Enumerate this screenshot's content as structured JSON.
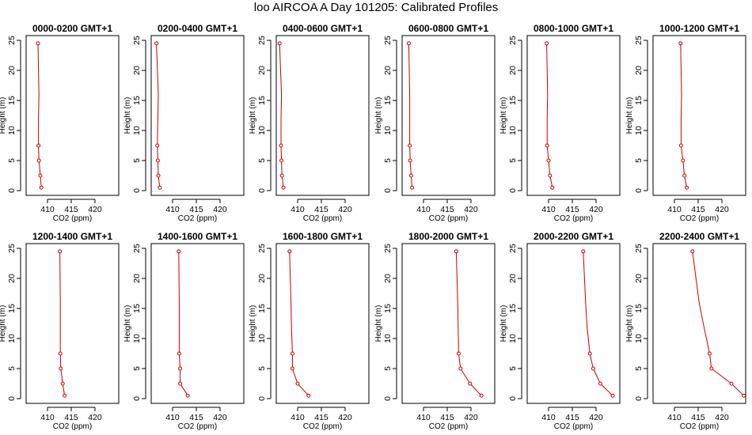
{
  "page_title": "loo AIRCOA A  Day 101205: Calibrated Profiles",
  "colors": {
    "series": "#cc0000",
    "axes": "#000000",
    "background": "#ffffff"
  },
  "chart_data": [
    {
      "type": "line",
      "title": "0000-0200 GMT+1",
      "xlabel": "CO2 (ppm)",
      "ylabel": "Height (m)",
      "xlim": [
        405.5,
        425
      ],
      "ylim": [
        0,
        25
      ],
      "xticks": [
        410,
        415,
        420
      ],
      "yticks": [
        0,
        5,
        10,
        15,
        20,
        25
      ],
      "grid": false,
      "series": [
        {
          "x": [
            408.7,
            408.5,
            408.2,
            408.1,
            408.1,
            408.2,
            408.0
          ],
          "y": [
            0.5,
            2.5,
            5,
            7.5,
            12,
            16,
            24.5
          ]
        }
      ]
    },
    {
      "type": "line",
      "title": "0200-0400 GMT+1",
      "xlabel": "CO2 (ppm)",
      "ylabel": "Height (m)",
      "xlim": [
        405.5,
        425
      ],
      "ylim": [
        0,
        25
      ],
      "xticks": [
        410,
        415,
        420
      ],
      "yticks": [
        0,
        5,
        10,
        15,
        20,
        25
      ],
      "grid": false,
      "series": [
        {
          "x": [
            407.3,
            407.0,
            406.9,
            406.8,
            406.9,
            407.0,
            406.6
          ],
          "y": [
            0.5,
            2.5,
            5,
            7.5,
            12,
            16,
            24.5
          ]
        }
      ]
    },
    {
      "type": "line",
      "title": "0400-0600 GMT+1",
      "xlabel": "CO2 (ppm)",
      "ylabel": "Height (m)",
      "xlim": [
        405.5,
        425
      ],
      "ylim": [
        0,
        25
      ],
      "xticks": [
        410,
        415,
        420
      ],
      "yticks": [
        0,
        5,
        10,
        15,
        20,
        25
      ],
      "grid": false,
      "series": [
        {
          "x": [
            407.0,
            406.7,
            406.6,
            406.5,
            406.5,
            406.6,
            406.2
          ],
          "y": [
            0.5,
            2.5,
            5,
            7.5,
            12,
            16,
            24.5
          ]
        }
      ]
    },
    {
      "type": "line",
      "title": "0600-0800 GMT+1",
      "xlabel": "CO2 (ppm)",
      "ylabel": "Height (m)",
      "xlim": [
        405.5,
        425
      ],
      "ylim": [
        0,
        25
      ],
      "xticks": [
        410,
        415,
        420
      ],
      "yticks": [
        0,
        5,
        10,
        15,
        20,
        25
      ],
      "grid": false,
      "series": [
        {
          "x": [
            407.6,
            407.4,
            407.2,
            407.1,
            407.1,
            407.1,
            406.9
          ],
          "y": [
            0.5,
            2.5,
            5,
            7.5,
            12,
            16,
            24.5
          ]
        }
      ]
    },
    {
      "type": "line",
      "title": "0800-1000 GMT+1",
      "xlabel": "CO2 (ppm)",
      "ylabel": "Height (m)",
      "xlim": [
        405.5,
        425
      ],
      "ylim": [
        0,
        25
      ],
      "xticks": [
        410,
        415,
        420
      ],
      "yticks": [
        0,
        5,
        10,
        15,
        20,
        25
      ],
      "grid": false,
      "series": [
        {
          "x": [
            410.8,
            410.3,
            410.0,
            409.7,
            409.7,
            409.8,
            409.6
          ],
          "y": [
            0.5,
            2.5,
            5,
            7.5,
            12,
            16,
            24.5
          ]
        }
      ]
    },
    {
      "type": "line",
      "title": "1000-1200 GMT+1",
      "xlabel": "CO2 (ppm)",
      "ylabel": "Height (m)",
      "xlim": [
        405.5,
        425
      ],
      "ylim": [
        0,
        25
      ],
      "xticks": [
        410,
        415,
        420
      ],
      "yticks": [
        0,
        5,
        10,
        15,
        20,
        25
      ],
      "grid": false,
      "series": [
        {
          "x": [
            412.6,
            412.1,
            411.8,
            411.4,
            411.4,
            411.5,
            411.3
          ],
          "y": [
            0.5,
            2.5,
            5,
            7.5,
            12,
            16,
            24.5
          ]
        }
      ]
    },
    {
      "type": "line",
      "title": "1200-1400 GMT+1",
      "xlabel": "CO2 (ppm)",
      "ylabel": "Height (m)",
      "xlim": [
        405.5,
        425
      ],
      "ylim": [
        0,
        25
      ],
      "xticks": [
        410,
        415,
        420
      ],
      "yticks": [
        0,
        5,
        10,
        15,
        20,
        25
      ],
      "grid": false,
      "series": [
        {
          "x": [
            413.6,
            413.2,
            412.8,
            412.7,
            412.7,
            412.7,
            412.6
          ],
          "y": [
            0.5,
            2.5,
            5,
            7.5,
            12,
            16,
            24.5
          ]
        }
      ]
    },
    {
      "type": "line",
      "title": "1400-1600 GMT+1",
      "xlabel": "CO2 (ppm)",
      "ylabel": "Height (m)",
      "xlim": [
        405.5,
        425
      ],
      "ylim": [
        0,
        25
      ],
      "xticks": [
        410,
        415,
        420
      ],
      "yticks": [
        0,
        5,
        10,
        15,
        20,
        25
      ],
      "grid": false,
      "series": [
        {
          "x": [
            413.2,
            411.6,
            411.6,
            411.4,
            411.4,
            411.4,
            411.3
          ],
          "y": [
            0.5,
            2.5,
            5,
            7.5,
            12,
            16,
            24.5
          ]
        }
      ]
    },
    {
      "type": "line",
      "title": "1600-1800 GMT+1",
      "xlabel": "CO2 (ppm)",
      "ylabel": "Height (m)",
      "xlim": [
        405.5,
        425
      ],
      "ylim": [
        0,
        25
      ],
      "xticks": [
        410,
        415,
        420
      ],
      "yticks": [
        0,
        5,
        10,
        15,
        20,
        25
      ],
      "grid": false,
      "series": [
        {
          "x": [
            412.3,
            410.0,
            408.9,
            408.9,
            408.7,
            408.6,
            408.3
          ],
          "y": [
            0.5,
            2.5,
            5,
            7.5,
            12,
            16,
            24.5
          ]
        }
      ]
    },
    {
      "type": "line",
      "title": "1800-2000 GMT+1",
      "xlabel": "CO2 (ppm)",
      "ylabel": "Height (m)",
      "xlim": [
        405.5,
        425
      ],
      "ylim": [
        0,
        25
      ],
      "xticks": [
        410,
        415,
        420
      ],
      "yticks": [
        0,
        5,
        10,
        15,
        20,
        25
      ],
      "grid": false,
      "series": [
        {
          "x": [
            422.2,
            419.8,
            417.8,
            417.4,
            417.3,
            417.2,
            416.9
          ],
          "y": [
            0.5,
            2.5,
            5,
            7.5,
            12,
            16,
            24.5
          ]
        }
      ]
    },
    {
      "type": "line",
      "title": "2000-2200 GMT+1",
      "xlabel": "CO2 (ppm)",
      "ylabel": "Height (m)",
      "xlim": [
        405.5,
        425
      ],
      "ylim": [
        0,
        25
      ],
      "xticks": [
        410,
        415,
        420
      ],
      "yticks": [
        0,
        5,
        10,
        15,
        20,
        25
      ],
      "grid": false,
      "series": [
        {
          "x": [
            423.5,
            420.9,
            419.4,
            418.7,
            418.1,
            417.8,
            417.3
          ],
          "y": [
            0.5,
            2.5,
            5,
            7.5,
            12,
            16,
            24.5
          ]
        }
      ]
    },
    {
      "type": "line",
      "title": "2200-2400 GMT+1",
      "xlabel": "CO2 (ppm)",
      "ylabel": "Height (m)",
      "xlim": [
        405.5,
        425
      ],
      "ylim": [
        0,
        25
      ],
      "xticks": [
        410,
        415,
        420
      ],
      "yticks": [
        0,
        5,
        10,
        15,
        20,
        25
      ],
      "grid": false,
      "series": [
        {
          "x": [
            424.6,
            422.0,
            417.8,
            417.4,
            416.2,
            415.2,
            413.8
          ],
          "y": [
            0.5,
            2.5,
            5,
            7.5,
            12,
            16,
            24.5
          ]
        }
      ]
    }
  ]
}
